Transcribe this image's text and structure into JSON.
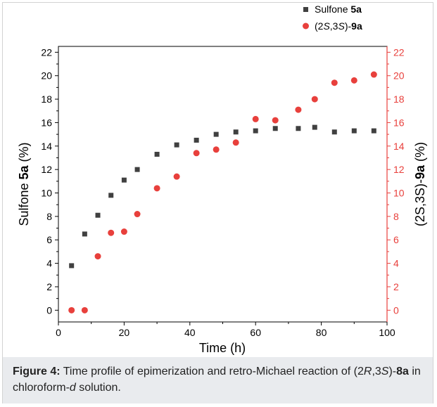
{
  "chart_data": {
    "type": "scatter",
    "x_label": "Time (h)",
    "y_label_left": {
      "pre": "Sulfone ",
      "bold": "5a",
      "post": " (%)"
    },
    "y_label_right": {
      "pre": "(2S,3S)-",
      "bold": "9a",
      "post": " (%)"
    },
    "xlim": [
      0,
      100
    ],
    "ylim": [
      -1,
      22.5
    ],
    "x_ticks": [
      0,
      20,
      40,
      60,
      80,
      100
    ],
    "y_ticks": [
      0,
      2,
      4,
      6,
      8,
      10,
      12,
      14,
      16,
      18,
      20,
      22
    ],
    "grid": false,
    "legend_position": "top-right",
    "series": [
      {
        "name": {
          "pre": "Sulfone ",
          "bold": "5a"
        },
        "marker": "square",
        "color": "#404040",
        "axis": "left",
        "x": [
          4,
          8,
          12,
          16,
          20,
          24,
          30,
          36,
          42,
          48,
          54,
          60,
          66,
          73,
          78,
          84,
          90,
          96
        ],
        "y": [
          3.8,
          6.5,
          8.1,
          9.8,
          11.1,
          12.0,
          13.3,
          14.1,
          14.5,
          15.0,
          15.2,
          15.3,
          15.5,
          15.5,
          15.6,
          15.2,
          15.3,
          15.3
        ]
      },
      {
        "name": {
          "pre": "(2",
          "it1": "S",
          "mid": ",3",
          "it2": "S",
          "post": ")-",
          "bold": "9a"
        },
        "marker": "circle",
        "color": "#e8403c",
        "axis": "right",
        "x": [
          4,
          8,
          12,
          16,
          20,
          24,
          30,
          36,
          42,
          48,
          54,
          60,
          66,
          73,
          78,
          84,
          90,
          96
        ],
        "y": [
          0.0,
          0.0,
          4.6,
          6.6,
          6.7,
          8.2,
          10.4,
          11.4,
          13.4,
          13.7,
          14.3,
          16.3,
          16.2,
          17.1,
          18.0,
          19.4,
          19.6,
          20.1
        ]
      }
    ]
  },
  "caption": {
    "label": "Figure 4:",
    "text1": " Time profile of epimerization and retro-Michael reaction of (2",
    "it_R": "R",
    "text2": ",3",
    "it_S": "S",
    "text3": ")-",
    "bold_8a": "8a",
    "text4": " in chloroform-",
    "it_d": "d",
    "text5": " solution."
  }
}
